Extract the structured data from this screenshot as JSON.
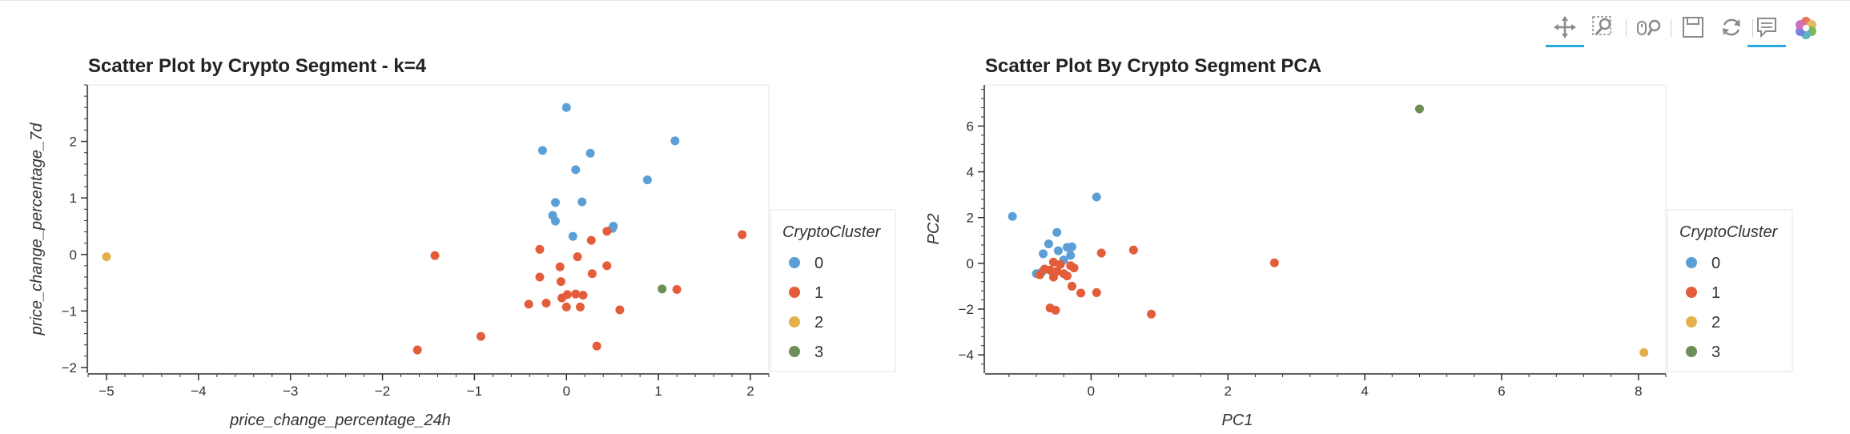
{
  "toolbar": {
    "tools": [
      {
        "name": "pan-tool",
        "icon": "pan-icon",
        "active": true
      },
      {
        "name": "box-zoom-tool",
        "icon": "box-zoom-icon",
        "active": false
      },
      {
        "name": "wheel-zoom-tool",
        "icon": "wheel-zoom-icon",
        "active": false
      },
      {
        "name": "save-tool",
        "icon": "save-icon",
        "active": false
      },
      {
        "name": "reset-tool",
        "icon": "reset-icon",
        "active": false
      },
      {
        "name": "hover-tool",
        "icon": "hover-icon",
        "active": true
      },
      {
        "name": "bokeh-logo",
        "icon": "bokeh-logo-icon",
        "active": false
      }
    ]
  },
  "colors": {
    "0": "#5b9fd6",
    "1": "#e45d3a",
    "2": "#e3b04b",
    "3": "#6b8f56"
  },
  "chart_data": [
    {
      "type": "scatter",
      "title": "Scatter Plot by Crypto Segment - k=4",
      "xlabel": "price_change_percentage_24h",
      "ylabel": "price_change_percentage_7d",
      "xlim": [
        -5.2,
        2.2
      ],
      "ylim": [
        -2.1,
        3.0
      ],
      "xticks": [
        -5,
        -4,
        -3,
        -2,
        -1,
        0,
        1,
        2
      ],
      "yticks": [
        -2,
        -1,
        0,
        1,
        2
      ],
      "legend_title": "CryptoCluster",
      "legend_position": "right",
      "series": [
        {
          "name": "0",
          "points": [
            [
              0.0,
              2.6
            ],
            [
              1.18,
              2.01
            ],
            [
              -0.26,
              1.84
            ],
            [
              0.26,
              1.79
            ],
            [
              0.1,
              1.5
            ],
            [
              0.88,
              1.32
            ],
            [
              -0.12,
              0.92
            ],
            [
              0.17,
              0.93
            ],
            [
              -0.15,
              0.69
            ],
            [
              -0.12,
              0.59
            ],
            [
              0.51,
              0.5
            ],
            [
              0.5,
              0.46
            ],
            [
              0.07,
              0.32
            ]
          ]
        },
        {
          "name": "1",
          "points": [
            [
              1.91,
              0.35
            ],
            [
              0.44,
              0.41
            ],
            [
              0.27,
              0.25
            ],
            [
              -0.29,
              0.09
            ],
            [
              0.12,
              -0.04
            ],
            [
              -0.07,
              -0.22
            ],
            [
              0.44,
              -0.2
            ],
            [
              -0.29,
              -0.4
            ],
            [
              0.28,
              -0.34
            ],
            [
              -0.06,
              -0.48
            ],
            [
              0.01,
              -0.71
            ],
            [
              0.1,
              -0.7
            ],
            [
              -0.05,
              -0.77
            ],
            [
              0.18,
              -0.72
            ],
            [
              1.2,
              -0.62
            ],
            [
              -0.41,
              -0.88
            ],
            [
              -0.22,
              -0.86
            ],
            [
              0.0,
              -0.93
            ],
            [
              0.15,
              -0.93
            ],
            [
              0.58,
              -0.98
            ],
            [
              0.33,
              -1.62
            ],
            [
              -0.93,
              -1.45
            ],
            [
              -1.62,
              -1.69
            ],
            [
              -1.43,
              -0.02
            ]
          ]
        },
        {
          "name": "2",
          "points": [
            [
              -5.0,
              -0.04
            ]
          ]
        },
        {
          "name": "3",
          "points": [
            [
              1.04,
              -0.61
            ]
          ]
        }
      ]
    },
    {
      "type": "scatter",
      "title": "Scatter Plot By Crypto Segment PCA",
      "xlabel": "PC1",
      "ylabel": "PC2",
      "xlim": [
        -1.55,
        8.4
      ],
      "ylim": [
        -4.8,
        7.8
      ],
      "xticks": [
        0,
        2,
        4,
        6,
        8
      ],
      "yticks": [
        -4,
        -2,
        0,
        2,
        4,
        6
      ],
      "legend_title": "CryptoCluster",
      "legend_position": "right",
      "series": [
        {
          "name": "0",
          "points": [
            [
              -1.15,
              2.05
            ],
            [
              0.08,
              2.9
            ],
            [
              -0.5,
              1.35
            ],
            [
              -0.62,
              0.85
            ],
            [
              -0.35,
              0.7
            ],
            [
              -0.28,
              0.72
            ],
            [
              -0.7,
              0.42
            ],
            [
              -0.48,
              0.55
            ],
            [
              -0.4,
              0.15
            ],
            [
              -0.3,
              0.35
            ],
            [
              -0.8,
              -0.45
            ],
            [
              -0.72,
              -0.38
            ]
          ]
        },
        {
          "name": "1",
          "points": [
            [
              0.62,
              0.58
            ],
            [
              0.15,
              0.45
            ],
            [
              -0.55,
              0.05
            ],
            [
              -0.45,
              -0.05
            ],
            [
              -0.3,
              -0.1
            ],
            [
              -0.68,
              -0.25
            ],
            [
              -0.6,
              -0.3
            ],
            [
              -0.5,
              -0.35
            ],
            [
              -0.4,
              -0.45
            ],
            [
              -0.75,
              -0.5
            ],
            [
              -0.35,
              -0.55
            ],
            [
              -0.55,
              -0.6
            ],
            [
              -0.28,
              -1.0
            ],
            [
              -0.15,
              -1.3
            ],
            [
              0.08,
              -1.28
            ],
            [
              -0.6,
              -1.95
            ],
            [
              -0.52,
              -2.05
            ],
            [
              0.88,
              -2.22
            ],
            [
              2.68,
              0.02
            ],
            [
              -0.25,
              -0.2
            ]
          ]
        },
        {
          "name": "2",
          "points": [
            [
              8.08,
              -3.9
            ]
          ]
        },
        {
          "name": "3",
          "points": [
            [
              4.8,
              6.75
            ]
          ]
        }
      ]
    }
  ]
}
